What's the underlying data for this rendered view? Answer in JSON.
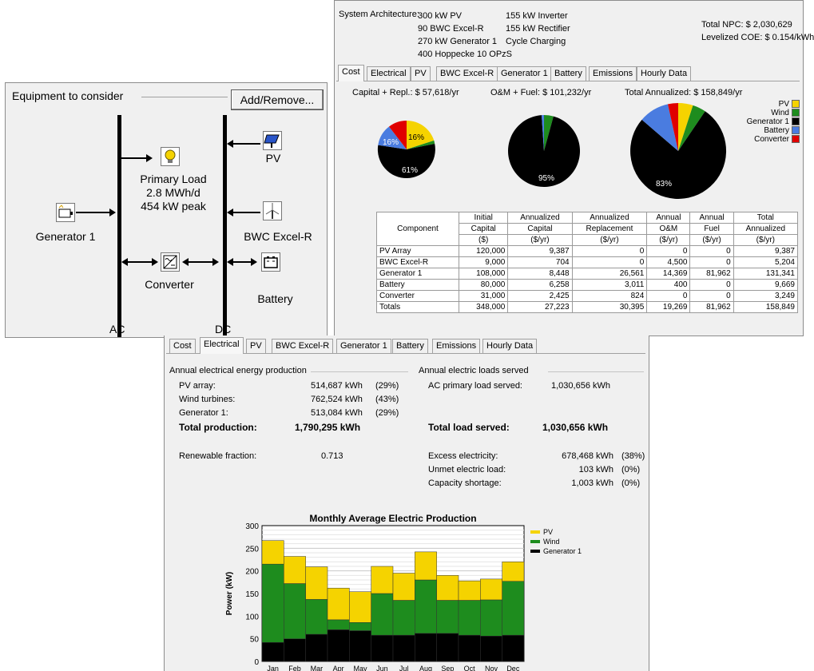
{
  "equipment": {
    "title": "Equipment to consider",
    "add_remove": "Add/Remove...",
    "primary_load": [
      "Primary Load",
      "2.8 MWh/d",
      "454 kW peak"
    ],
    "generator": "Generator 1",
    "converter": "Converter",
    "pv": "PV",
    "wind": "BWC Excel-R",
    "battery": "Battery",
    "ac": "AC",
    "dc": "DC",
    "icons": {
      "load": "bulb-icon",
      "generator": "generator-icon",
      "converter": "converter-icon",
      "pv": "solar-panel-icon",
      "wind": "wind-turbine-icon",
      "battery": "battery-icon"
    }
  },
  "architecture": {
    "label": "System Architecture:",
    "col1": [
      "300 kW PV",
      "90 BWC Excel-R",
      "270 kW Generator 1",
      "400 Hoppecke 10 OPzS"
    ],
    "col2": [
      "155 kW Inverter",
      "155 kW Rectifier",
      "Cycle Charging"
    ],
    "total_npc": "Total NPC:  $ 2,030,629",
    "levelized_coe": "Levelized COE:  $ 0.154/kWh"
  },
  "tabs": [
    "Cost",
    "Electrical",
    "PV",
    "BWC Excel-R",
    "Generator 1",
    "Battery",
    "Emissions",
    "Hourly Data"
  ],
  "cost": {
    "pie1_title": "Capital + Repl.: $ 57,618/yr",
    "pie2_title": "O&M + Fuel: $ 101,232/yr",
    "pie3_title": "Total Annualized: $ 158,849/yr",
    "pie1_labels": [
      "16%",
      "16%",
      "61%"
    ],
    "pie2_labels": [
      "95%"
    ],
    "pie3_labels": [
      "83%"
    ],
    "legend": [
      {
        "name": "PV",
        "color": "#f5d300"
      },
      {
        "name": "Wind",
        "color": "#1e8c1e"
      },
      {
        "name": "Generator 1",
        "color": "#000000"
      },
      {
        "name": "Battery",
        "color": "#4a7ce0"
      },
      {
        "name": "Converter",
        "color": "#e00000"
      }
    ],
    "table_header": [
      [
        "Component",
        "Initial",
        "Annualized",
        "Annualized",
        "Annual",
        "Annual",
        "Total"
      ],
      [
        "",
        "Capital",
        "Capital",
        "Replacement",
        "O&M",
        "Fuel",
        "Annualized"
      ],
      [
        "",
        "($)",
        "($/yr)",
        "($/yr)",
        "($/yr)",
        "($/yr)",
        "($/yr)"
      ]
    ],
    "table_rows": [
      [
        "PV Array",
        "120,000",
        "9,387",
        "0",
        "0",
        "0",
        "9,387"
      ],
      [
        "BWC Excel-R",
        "9,000",
        "704",
        "0",
        "4,500",
        "0",
        "5,204"
      ],
      [
        "Generator 1",
        "108,000",
        "8,448",
        "26,561",
        "14,369",
        "81,962",
        "131,341"
      ],
      [
        "Battery",
        "80,000",
        "6,258",
        "3,011",
        "400",
        "0",
        "9,669"
      ],
      [
        "Converter",
        "31,000",
        "2,425",
        "824",
        "0",
        "0",
        "3,249"
      ],
      [
        "Totals",
        "348,000",
        "27,223",
        "30,395",
        "19,269",
        "81,962",
        "158,849"
      ]
    ]
  },
  "electrical": {
    "production_title": "Annual electrical energy production",
    "loads_title": "Annual electric loads served",
    "production_rows": [
      [
        "PV array:",
        "514,687 kWh",
        "(29%)"
      ],
      [
        "Wind turbines:",
        "762,524 kWh",
        "(43%)"
      ],
      [
        "Generator 1:",
        "513,084 kWh",
        "(29%)"
      ]
    ],
    "total_production": [
      "Total production:",
      "1,790,295 kWh"
    ],
    "renewable": [
      "Renewable fraction:",
      "0.713"
    ],
    "ac_load": [
      "AC primary load served:",
      "1,030,656 kWh"
    ],
    "total_load": [
      "Total load served:",
      "1,030,656 kWh"
    ],
    "excess": [
      [
        "Excess electricity:",
        "678,468 kWh",
        "(38%)"
      ],
      [
        "Unmet electric load:",
        "103 kWh",
        "(0%)"
      ],
      [
        "Capacity shortage:",
        "1,003 kWh",
        "(0%)"
      ]
    ]
  },
  "chart_data": {
    "type": "bar",
    "title": "Monthly Average Electric Production",
    "ylabel": "Power (kW)",
    "xlabel": "",
    "ylim": [
      0,
      300
    ],
    "yticks": [
      "0",
      "50",
      "100",
      "150",
      "200",
      "250",
      "300"
    ],
    "categories": [
      "Jan",
      "Feb",
      "Mar",
      "Apr",
      "May",
      "Jun",
      "Jul",
      "Aug",
      "Sep",
      "Oct",
      "Nov",
      "Dec"
    ],
    "stacked": true,
    "series": [
      {
        "name": "Generator 1",
        "color": "#000000",
        "values": [
          42,
          50,
          60,
          70,
          68,
          58,
          58,
          62,
          62,
          58,
          56,
          58
        ]
      },
      {
        "name": "Wind",
        "color": "#1e8c1e",
        "values": [
          173,
          122,
          77,
          22,
          18,
          92,
          77,
          118,
          73,
          77,
          80,
          119
        ]
      },
      {
        "name": "PV",
        "color": "#f5d300",
        "values": [
          52,
          60,
          72,
          70,
          68,
          60,
          60,
          62,
          55,
          43,
          46,
          43
        ]
      }
    ],
    "legend_order": [
      "PV",
      "Wind",
      "Generator 1"
    ],
    "legend_position": "right",
    "grid": true
  }
}
